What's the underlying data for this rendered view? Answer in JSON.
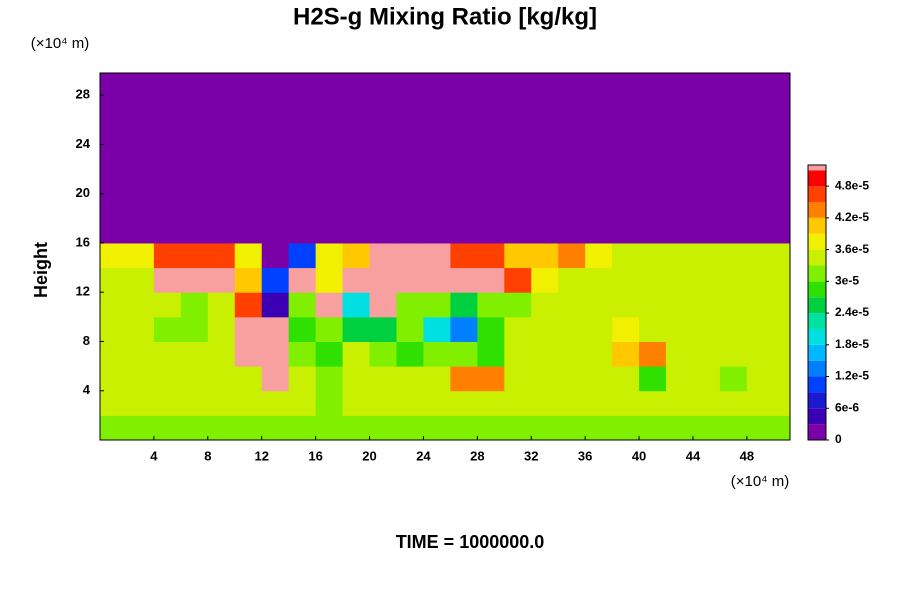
{
  "chart_data": {
    "type": "heatmap",
    "title": "H2S-g Mixing Ratio [kg/kg]",
    "ylabel": "Height",
    "yunit": "(×10⁴ m)",
    "xunit": "(×10⁴ m)",
    "footer": "TIME = 1000000.0",
    "xlim": [
      0,
      51.2
    ],
    "ylim": [
      0,
      29.8
    ],
    "xticks": [
      4,
      8,
      12,
      16,
      20,
      24,
      28,
      32,
      36,
      40,
      44,
      48
    ],
    "yticks": [
      4,
      8,
      12,
      16,
      20,
      24,
      28
    ],
    "clim": [
      0,
      5.2e-05
    ],
    "cticks": [
      0,
      {
        "value": 6e-06,
        "label": "6e-6"
      },
      {
        "value": 1.2e-05,
        "label": "1.2e-5"
      },
      {
        "value": 1.8e-05,
        "label": "1.8e-5"
      },
      {
        "value": 2.4e-05,
        "label": "2.4e-5"
      },
      {
        "value": 3e-05,
        "label": "3e-5"
      },
      {
        "value": 3.6e-05,
        "label": "3.6e-5"
      },
      {
        "value": 4.2e-05,
        "label": "4.2e-5"
      },
      {
        "value": 4.8e-05,
        "label": "4.8e-5"
      }
    ],
    "colorscale": [
      {
        "value": 0,
        "color": "#7a00a8"
      },
      {
        "value": 3e-06,
        "color": "#3c00b4"
      },
      {
        "value": 6e-06,
        "color": "#1a1ad0"
      },
      {
        "value": 9e-06,
        "color": "#0040ff"
      },
      {
        "value": 1.2e-05,
        "color": "#0080ff"
      },
      {
        "value": 1.5e-05,
        "color": "#00b8ff"
      },
      {
        "value": 1.8e-05,
        "color": "#00e0e0"
      },
      {
        "value": 2.1e-05,
        "color": "#00e0a0"
      },
      {
        "value": 2.4e-05,
        "color": "#00d040"
      },
      {
        "value": 2.7e-05,
        "color": "#30e000"
      },
      {
        "value": 3e-05,
        "color": "#80f000"
      },
      {
        "value": 3.3e-05,
        "color": "#c8f000"
      },
      {
        "value": 3.6e-05,
        "color": "#f0f000"
      },
      {
        "value": 3.9e-05,
        "color": "#ffc800"
      },
      {
        "value": 4.2e-05,
        "color": "#ff8000"
      },
      {
        "value": 4.5e-05,
        "color": "#ff4000"
      },
      {
        "value": 4.8e-05,
        "color": "#ff0000"
      },
      {
        "value": 5.1e-05,
        "color": "#f8a0a0"
      }
    ],
    "x": [
      1,
      3,
      5,
      7,
      9,
      11,
      13,
      15,
      17,
      19,
      21,
      23,
      25,
      27,
      29,
      31,
      33,
      35,
      37,
      39,
      41,
      43,
      45,
      47,
      49,
      51
    ],
    "y": [
      1,
      3,
      5,
      7,
      9,
      11,
      13,
      15,
      17,
      19,
      21,
      23,
      25,
      27,
      29
    ],
    "z": [
      [
        3.2e-05,
        3.2e-05,
        3.1e-05,
        3.2e-05,
        3.2e-05,
        3.2e-05,
        3.1e-05,
        3.2e-05,
        3e-05,
        3.2e-05,
        3.2e-05,
        3.1e-05,
        3.2e-05,
        3.2e-05,
        3.2e-05,
        3.1e-05,
        3.2e-05,
        3.2e-05,
        3.2e-05,
        3.2e-05,
        3.1e-05,
        3.2e-05,
        3.2e-05,
        3.2e-05,
        3.2e-05,
        3.2e-05
      ],
      [
        3.3e-05,
        3.3e-05,
        3.3e-05,
        3.3e-05,
        3.3e-05,
        3.3e-05,
        3.3e-05,
        3.3e-05,
        3e-05,
        3.3e-05,
        3.3e-05,
        3.3e-05,
        3.3e-05,
        3.3e-05,
        3.3e-05,
        3.3e-05,
        3.3e-05,
        3.3e-05,
        3.3e-05,
        3.3e-05,
        3.3e-05,
        3.3e-05,
        3.3e-05,
        3.3e-05,
        3.3e-05,
        3.3e-05
      ],
      [
        3.4e-05,
        3.4e-05,
        3.3e-05,
        3.4e-05,
        3.4e-05,
        3.4e-05,
        5.2e-05,
        3.4e-05,
        3.2e-05,
        3.3e-05,
        3.4e-05,
        3.3e-05,
        3.3e-05,
        4.3e-05,
        4.2e-05,
        3.4e-05,
        3.4e-05,
        3.4e-05,
        3.3e-05,
        3.3e-05,
        2.9e-05,
        3.3e-05,
        3.4e-05,
        3.2e-05,
        3.3e-05,
        3.4e-05
      ],
      [
        3.5e-05,
        3.5e-05,
        3.4e-05,
        3.4e-05,
        3.3e-05,
        5.2e-05,
        5.2e-05,
        3.2e-05,
        2.8e-05,
        3.3e-05,
        3e-05,
        2.8e-05,
        3e-05,
        3.2e-05,
        2.9e-05,
        3.4e-05,
        3.4e-05,
        3.4e-05,
        3.4e-05,
        4e-05,
        4.3e-05,
        3.5e-05,
        3.4e-05,
        3.3e-05,
        3.4e-05,
        3.4e-05
      ],
      [
        3.4e-05,
        3.4e-05,
        3.2e-05,
        3.2e-05,
        3.3e-05,
        5.2e-05,
        5.2e-05,
        2.8e-05,
        3e-05,
        2.5e-05,
        2.6e-05,
        3e-05,
        2e-05,
        1.3e-05,
        2.8e-05,
        3.3e-05,
        3.4e-05,
        3.4e-05,
        3.4e-05,
        3.6e-05,
        3.5e-05,
        3.4e-05,
        3.4e-05,
        3.4e-05,
        3.4e-05,
        3.4e-05
      ],
      [
        3.4e-05,
        3.4e-05,
        3.3e-05,
        3.2e-05,
        3.4e-05,
        4.5e-05,
        5e-06,
        3e-05,
        5.2e-05,
        2e-05,
        5.2e-05,
        3e-05,
        3.2e-05,
        2.5e-05,
        3e-05,
        3.2e-05,
        3.3e-05,
        3.4e-05,
        3.4e-05,
        3.4e-05,
        3.4e-05,
        3.4e-05,
        3.4e-05,
        3.4e-05,
        3.4e-05,
        3.4e-05
      ],
      [
        3.4e-05,
        3.5e-05,
        5.2e-05,
        5.2e-05,
        5.2e-05,
        4e-05,
        1e-05,
        5.2e-05,
        3.8e-05,
        5.2e-05,
        5.2e-05,
        5.2e-05,
        5.2e-05,
        5.2e-05,
        5.2e-05,
        4.5e-05,
        3.6e-05,
        3.5e-05,
        3.4e-05,
        3.4e-05,
        3.4e-05,
        3.4e-05,
        3.4e-05,
        3.4e-05,
        3.4e-05,
        3.4e-05
      ],
      [
        3.6e-05,
        3.6e-05,
        4.5e-05,
        4.5e-05,
        4.5e-05,
        3.6e-05,
        0,
        1e-05,
        3.6e-05,
        4e-05,
        5.2e-05,
        5.2e-05,
        5.2e-05,
        4.5e-05,
        4.5e-05,
        4e-05,
        4e-05,
        4.2e-05,
        3.6e-05,
        3.5e-05,
        3.5e-05,
        3.5e-05,
        3.5e-05,
        3.5e-05,
        3.5e-05,
        3.5e-05
      ],
      [
        0,
        0,
        0,
        0,
        0,
        0,
        0,
        0,
        0,
        0,
        0,
        0,
        0,
        0,
        0,
        0,
        0,
        0,
        0,
        0,
        0,
        0,
        0,
        0,
        0,
        0
      ],
      [
        0,
        0,
        0,
        0,
        0,
        0,
        0,
        0,
        0,
        0,
        0,
        0,
        0,
        0,
        0,
        0,
        0,
        0,
        0,
        0,
        0,
        0,
        0,
        0,
        0,
        0
      ],
      [
        0,
        0,
        0,
        0,
        0,
        0,
        0,
        0,
        0,
        0,
        0,
        0,
        0,
        0,
        0,
        0,
        0,
        0,
        0,
        0,
        0,
        0,
        0,
        0,
        0,
        0
      ],
      [
        0,
        0,
        0,
        0,
        0,
        0,
        0,
        0,
        0,
        0,
        0,
        0,
        0,
        0,
        0,
        0,
        0,
        0,
        0,
        0,
        0,
        0,
        0,
        0,
        0,
        0
      ],
      [
        0,
        0,
        0,
        0,
        0,
        0,
        0,
        0,
        0,
        0,
        0,
        0,
        0,
        0,
        0,
        0,
        0,
        0,
        0,
        0,
        0,
        0,
        0,
        0,
        0,
        0
      ],
      [
        0,
        0,
        0,
        0,
        0,
        0,
        0,
        0,
        0,
        0,
        0,
        0,
        0,
        0,
        0,
        0,
        0,
        0,
        0,
        0,
        0,
        0,
        0,
        0,
        0,
        0
      ],
      [
        0,
        0,
        0,
        0,
        0,
        0,
        0,
        0,
        0,
        0,
        0,
        0,
        0,
        0,
        0,
        0,
        0,
        0,
        0,
        0,
        0,
        0,
        0,
        0,
        0,
        0
      ]
    ]
  }
}
